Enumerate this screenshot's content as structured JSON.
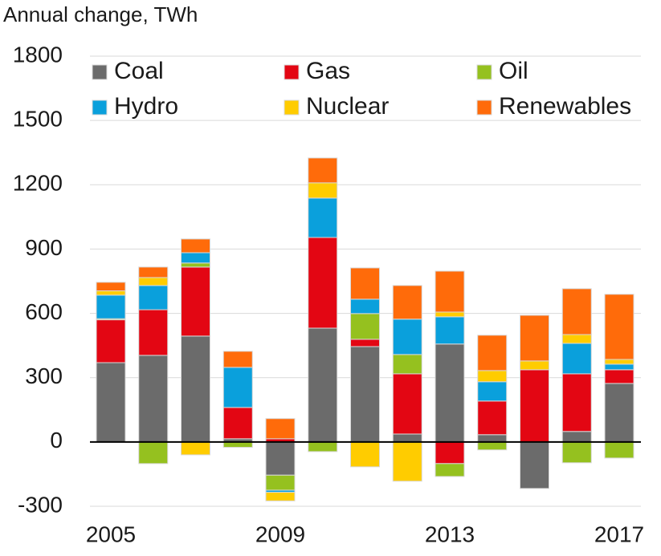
{
  "chart_data": {
    "type": "stacked_bar",
    "y_label": "Annual change, TWh",
    "categories": [
      "2005",
      null,
      null,
      null,
      "2009",
      null,
      null,
      null,
      "2013",
      null,
      null,
      null,
      "2017"
    ],
    "series": [
      {
        "name": "Coal",
        "color": "#6b6b6b",
        "values": [
          370,
          404,
          494,
          15,
          -155,
          531,
          445,
          37,
          457,
          34,
          -217,
          49,
          273
        ]
      },
      {
        "name": "Gas",
        "color": "#e30613",
        "values": [
          200,
          213,
          322,
          146,
          15,
          423,
          34,
          281,
          -101,
          157,
          337,
          269,
          64
        ]
      },
      {
        "name": "Oil",
        "color": "#95c11f",
        "values": [
          5,
          -101,
          19,
          -25,
          -70,
          -45,
          120,
          90,
          -60,
          -37,
          0,
          -97,
          -75
        ]
      },
      {
        "name": "Hydro",
        "color": "#0aa0dc",
        "values": [
          110,
          113,
          48,
          187,
          -10,
          184,
          67,
          165,
          127,
          90,
          0,
          142,
          26
        ]
      },
      {
        "name": "Nuclear",
        "color": "#ffcc00",
        "values": [
          20,
          37,
          -60,
          0,
          -40,
          71,
          -116,
          -183,
          22,
          52,
          41,
          41,
          22
        ]
      },
      {
        "name": "Renewables",
        "color": "#ff6b0a",
        "values": [
          40,
          49,
          64,
          75,
          94,
          116,
          146,
          157,
          191,
          165,
          213,
          214,
          304
        ]
      }
    ],
    "ylim": [
      -300,
      1800
    ],
    "yticks": [
      -300,
      0,
      300,
      600,
      900,
      1200,
      1500,
      1800
    ],
    "grid": true
  }
}
